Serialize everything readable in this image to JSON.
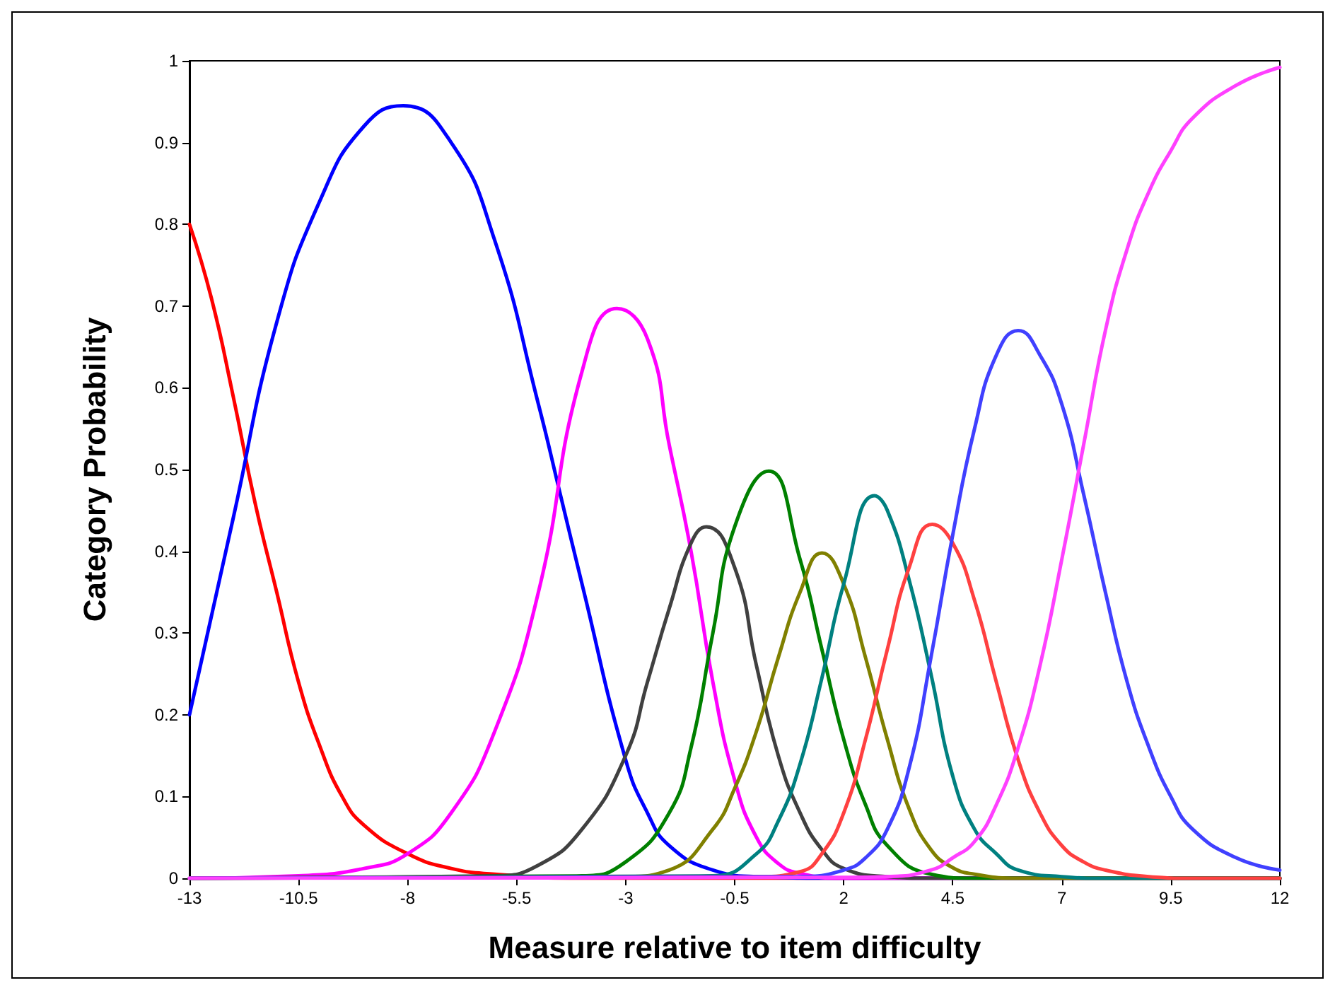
{
  "chart_data": {
    "type": "line",
    "xlabel": "Measure relative to item difficulty",
    "ylabel": "Category Probability",
    "xlim": [
      -13,
      12
    ],
    "xticks": [
      -13,
      -10.5,
      -8,
      -5.5,
      -3,
      -0.5,
      2,
      4.5,
      7,
      9.5,
      12
    ],
    "ylim": [
      0,
      1
    ],
    "yticks": [
      0,
      0.1,
      0.2,
      0.3,
      0.4,
      0.5,
      0.6,
      0.7,
      0.8,
      0.9,
      1
    ],
    "grid": false,
    "marker": "none",
    "line_style": "solid",
    "series": [
      {
        "color": "#ff0000",
        "x": [
          -13,
          -12.5,
          -12,
          -11.5,
          -11,
          -10.5,
          -10,
          -9.5,
          -9,
          -8,
          -7,
          -6,
          -4,
          12
        ],
        "values": [
          0.8,
          0.71,
          0.59,
          0.46,
          0.35,
          0.24,
          0.16,
          0.1,
          0.065,
          0.03,
          0.012,
          0.005,
          0,
          0
        ]
      },
      {
        "color": "#0000ff",
        "x": [
          -13,
          -12,
          -11,
          -10,
          -9,
          -8.1,
          -7,
          -6,
          -5,
          -4.5,
          -4,
          -3,
          -2.5,
          -2,
          -1,
          0,
          2,
          12
        ],
        "values": [
          0.2,
          0.44,
          0.68,
          0.83,
          0.92,
          0.945,
          0.9,
          0.78,
          0.58,
          0.47,
          0.36,
          0.145,
          0.08,
          0.04,
          0.01,
          0.002,
          0,
          0
        ]
      },
      {
        "color": "#ff00ff",
        "x": [
          -13,
          -10.5,
          -9,
          -8,
          -7,
          -6,
          -5,
          -4,
          -3.2,
          -2.5,
          -2,
          -1.5,
          -1,
          -0.5,
          0,
          0.5,
          1,
          2,
          12
        ],
        "values": [
          0,
          0.003,
          0.012,
          0.03,
          0.08,
          0.18,
          0.35,
          0.62,
          0.697,
          0.66,
          0.53,
          0.4,
          0.24,
          0.12,
          0.05,
          0.018,
          0.006,
          0,
          0
        ]
      },
      {
        "color": "#404040",
        "x": [
          -13,
          -6,
          -5,
          -4,
          -3,
          -2.5,
          -2,
          -1.5,
          -1.15,
          -0.5,
          0,
          0.5,
          1,
          1.5,
          2,
          3,
          4,
          12
        ],
        "values": [
          0,
          0.003,
          0.016,
          0.06,
          0.15,
          0.24,
          0.33,
          0.41,
          0.43,
          0.38,
          0.26,
          0.15,
          0.08,
          0.035,
          0.012,
          0.002,
          0,
          0
        ]
      },
      {
        "color": "#008000",
        "x": [
          -13,
          -4,
          -3,
          -2,
          -1.5,
          -1,
          -0.5,
          0.28,
          1,
          1.5,
          2,
          2.5,
          3,
          4,
          5,
          12
        ],
        "values": [
          0,
          0.003,
          0.02,
          0.08,
          0.16,
          0.3,
          0.43,
          0.498,
          0.39,
          0.28,
          0.17,
          0.09,
          0.04,
          0.005,
          0,
          0
        ]
      },
      {
        "color": "#808000",
        "x": [
          -13,
          -3,
          -2,
          -1,
          -0.5,
          0,
          0.5,
          1,
          1.5,
          2,
          2.5,
          3,
          3.5,
          4,
          4.5,
          5,
          6,
          12
        ],
        "values": [
          0,
          0.002,
          0.01,
          0.06,
          0.11,
          0.18,
          0.27,
          0.35,
          0.398,
          0.36,
          0.27,
          0.17,
          0.085,
          0.035,
          0.013,
          0.005,
          0,
          0
        ]
      },
      {
        "color": "#008080",
        "x": [
          -13,
          -1,
          0,
          0.5,
          1,
          1.5,
          2,
          2.71,
          3,
          3.5,
          4,
          4.5,
          5,
          5.5,
          6,
          7,
          8,
          12
        ],
        "values": [
          0,
          0.003,
          0.03,
          0.07,
          0.14,
          0.245,
          0.36,
          0.468,
          0.45,
          0.365,
          0.25,
          0.125,
          0.06,
          0.03,
          0.01,
          0.002,
          0,
          0
        ]
      },
      {
        "color": "#ff4040",
        "x": [
          -13,
          0,
          1,
          1.5,
          2,
          2.5,
          3,
          3.5,
          4.03,
          4.5,
          5,
          5.5,
          6,
          6.5,
          7,
          7.5,
          8,
          9,
          10,
          12
        ],
        "values": [
          0,
          0.002,
          0.008,
          0.03,
          0.08,
          0.17,
          0.28,
          0.38,
          0.433,
          0.41,
          0.34,
          0.24,
          0.145,
          0.08,
          0.04,
          0.02,
          0.01,
          0.002,
          0,
          0
        ]
      },
      {
        "color": "#4040ff",
        "x": [
          -13,
          1,
          2,
          2.5,
          3,
          3.5,
          4,
          4.5,
          5,
          5.5,
          6,
          6.5,
          7,
          7.5,
          8,
          8.5,
          9,
          9.5,
          10,
          11,
          12
        ],
        "values": [
          0,
          0.002,
          0.01,
          0.025,
          0.06,
          0.135,
          0.27,
          0.42,
          0.55,
          0.64,
          0.67,
          0.64,
          0.58,
          0.47,
          0.35,
          0.24,
          0.16,
          0.1,
          0.06,
          0.025,
          0.01
        ]
      },
      {
        "color": "#ff40ff",
        "x": [
          -13,
          2,
          3,
          4,
          4.5,
          5,
          5.5,
          6,
          6.5,
          7,
          7.5,
          8,
          8.5,
          9,
          9.5,
          10,
          11,
          12
        ],
        "values": [
          0,
          0.001,
          0.002,
          0.01,
          0.025,
          0.045,
          0.09,
          0.16,
          0.26,
          0.39,
          0.53,
          0.67,
          0.77,
          0.84,
          0.89,
          0.93,
          0.97,
          0.992
        ]
      }
    ]
  }
}
